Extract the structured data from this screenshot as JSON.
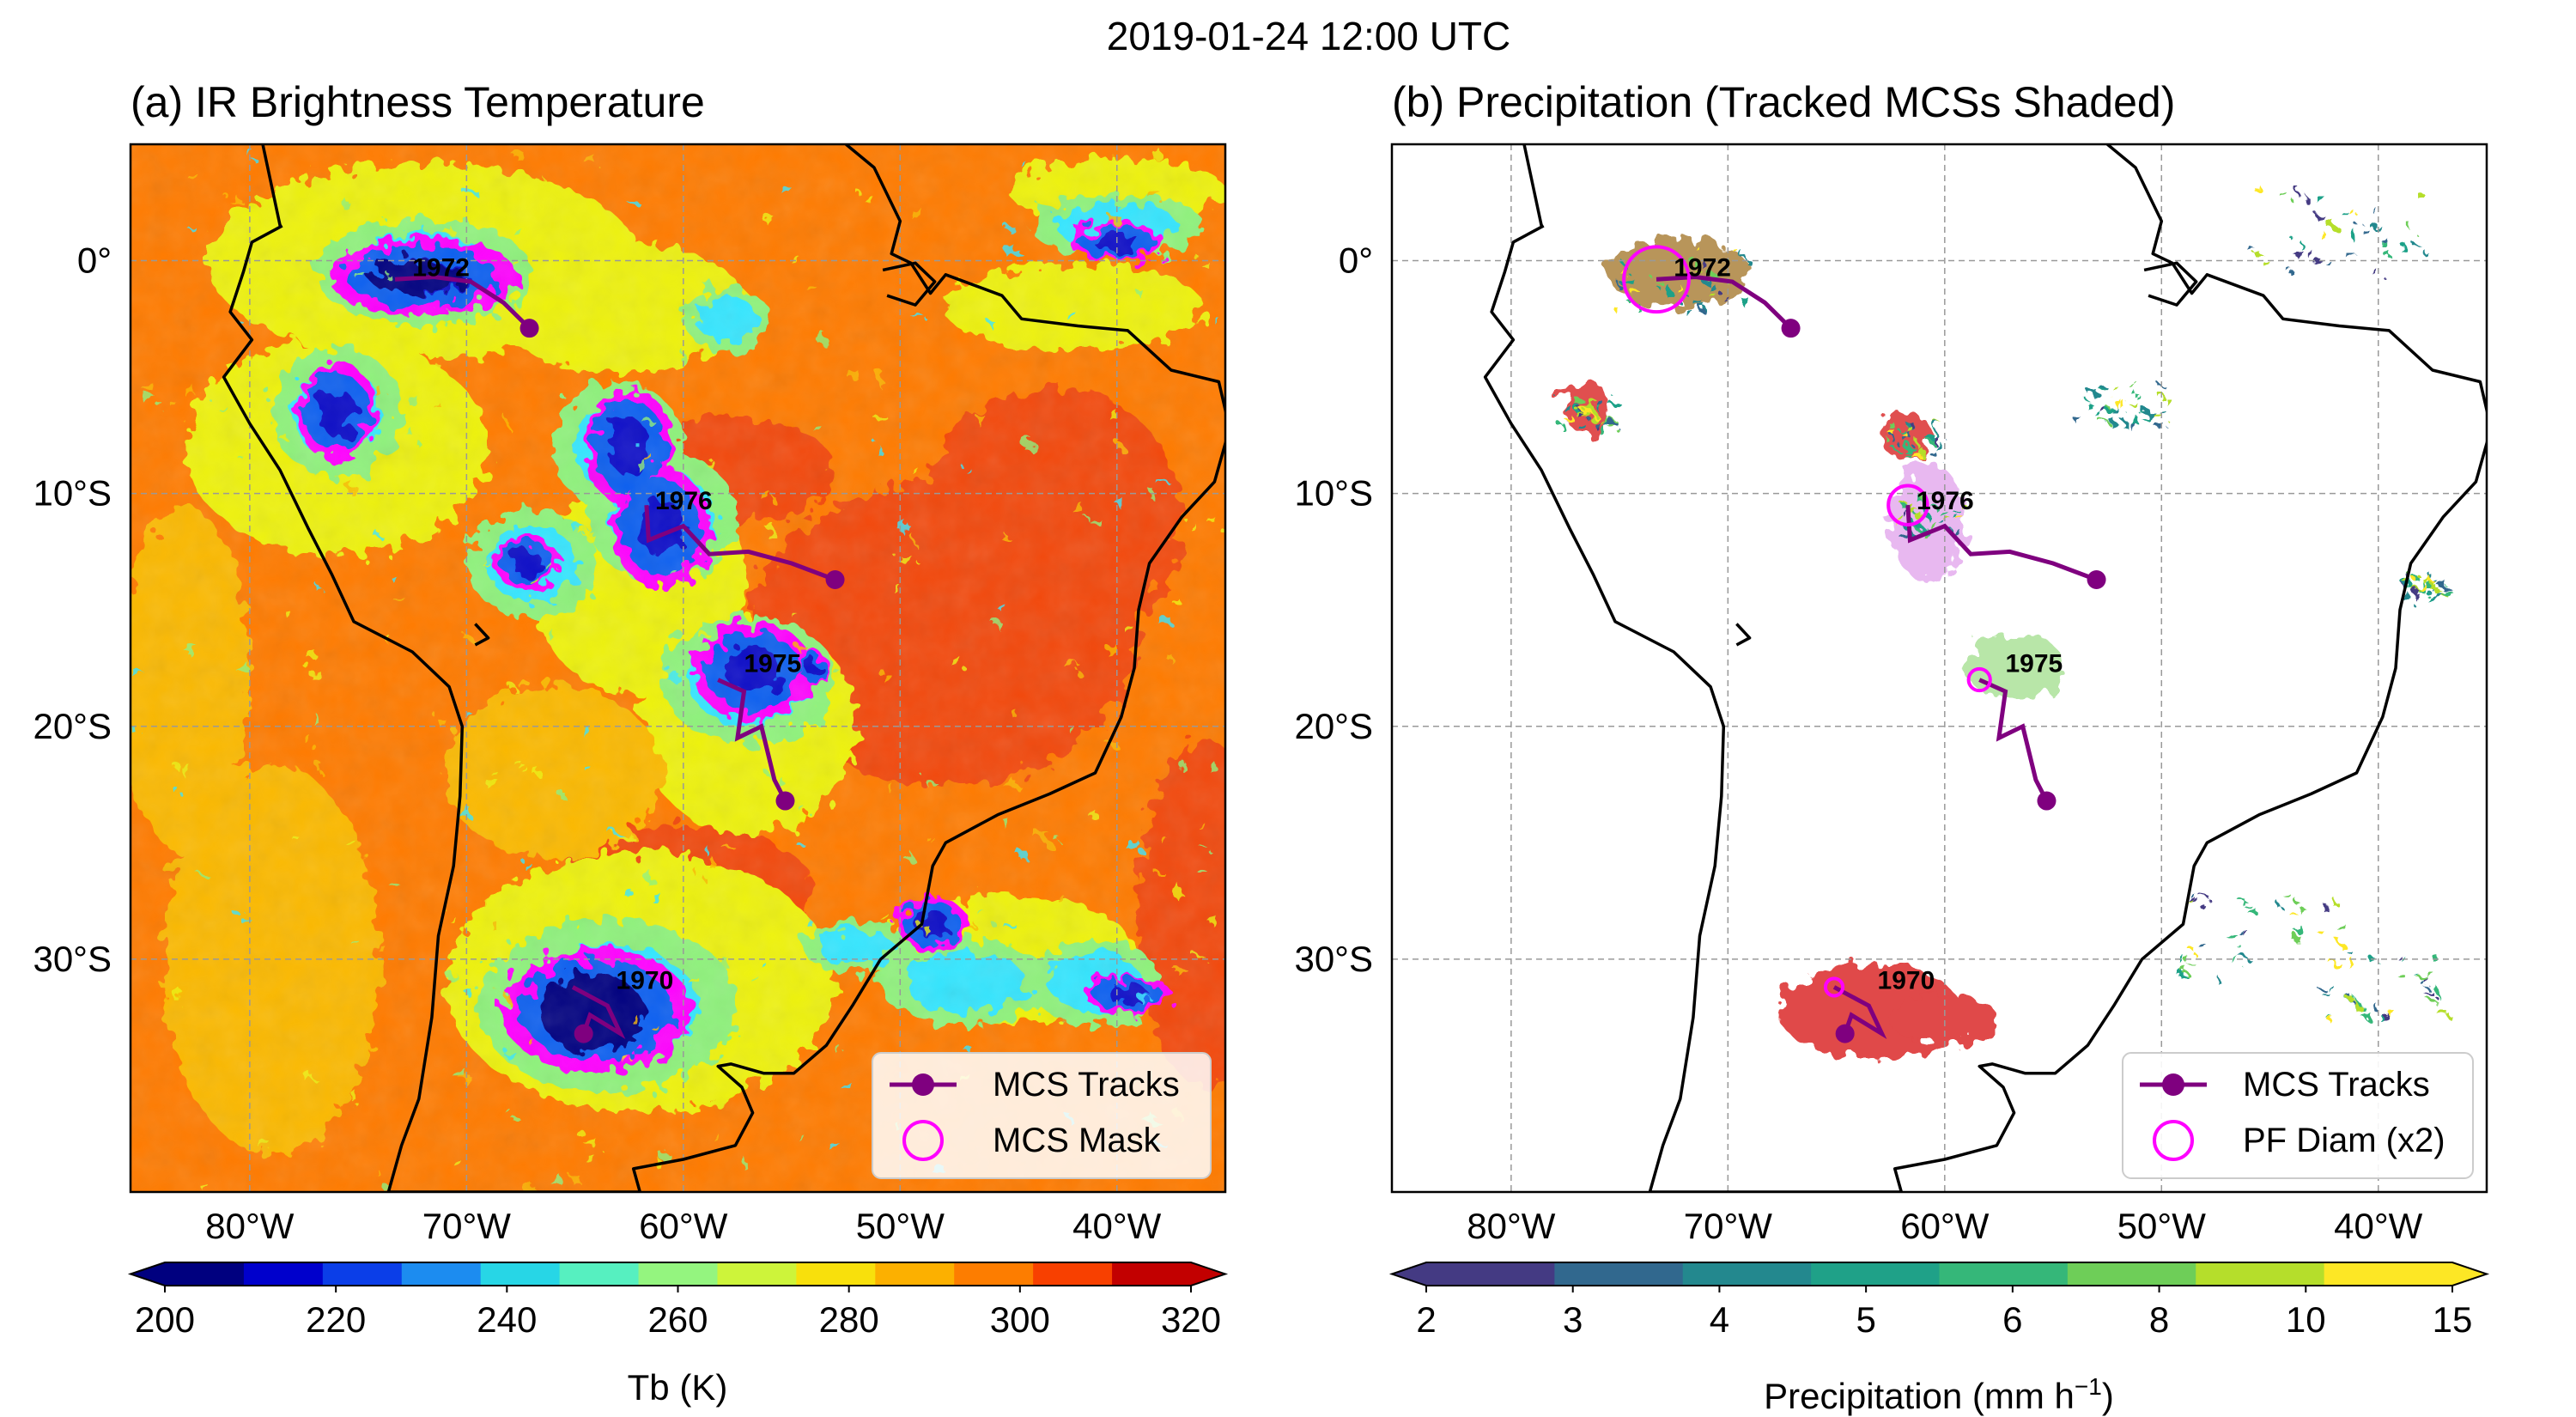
{
  "figure": {
    "suptitle": "2019-01-24 12:00 UTC"
  },
  "panels": {
    "a": {
      "title": "(a) IR Brightness Temperature",
      "legend": {
        "tracks": "MCS Tracks",
        "marker": "MCS Mask"
      },
      "colorbar": {
        "label": "Tb (K)",
        "ticks": [
          "200",
          "220",
          "240",
          "260",
          "280",
          "300",
          "320"
        ],
        "colors": [
          "#00007f",
          "#0000cc",
          "#0b3ee8",
          "#1c8cf0",
          "#27d6e6",
          "#56f0c0",
          "#94f57f",
          "#cdf43a",
          "#f8e00c",
          "#fcb000",
          "#fd7d00",
          "#f84000",
          "#c20000"
        ]
      },
      "palette": {
        "background": "#ff7b00",
        "warm": "#f24a0c",
        "midwarm": "#fbb900",
        "yellow": "#eef20a",
        "green": "#8ff27b",
        "cyan": "#35e6ff",
        "blue": "#1060f0",
        "deep": "#0a10c8",
        "navy": "#000080",
        "mask": "#ff00ff"
      }
    },
    "b": {
      "title": "(b) Precipitation (Tracked MCSs Shaded)",
      "legend": {
        "tracks": "MCS Tracks",
        "marker": "PF Diam (x2)"
      },
      "colorbar": {
        "label": "Precipitation (mm h",
        "label_sup": "−1",
        "label_end": ")",
        "ticks": [
          "2",
          "3",
          "4",
          "5",
          "6",
          "8",
          "10",
          "15"
        ],
        "colors": [
          "#443a83",
          "#31688e",
          "#23888e",
          "#1fa188",
          "#35b779",
          "#6ece58",
          "#b5de2b",
          "#fde725"
        ]
      },
      "mcs_shades": {
        "1970": "#e04848",
        "1972": "#b8955a",
        "1975": "#b8e6a8",
        "1976": "#e8b8f0",
        "sw": "#e05050"
      }
    }
  },
  "map": {
    "lon_ticks": [
      -80,
      -70,
      -60,
      -50,
      -40
    ],
    "lat_ticks": [
      0,
      -10,
      -20,
      -30
    ],
    "lon_labels": [
      "80°W",
      "70°W",
      "60°W",
      "50°W",
      "40°W"
    ],
    "lat_labels": [
      "0°",
      "10°S",
      "20°S",
      "30°S"
    ],
    "lon_range": [
      -85.5,
      -35
    ],
    "lat_range": [
      -40,
      5
    ]
  },
  "mcs_tracks": [
    {
      "id": "1972",
      "lon": [
        -73.3,
        -71.5,
        -69.8,
        -68.3,
        -67.1
      ],
      "lat": [
        -0.8,
        -0.7,
        -0.9,
        -1.8,
        -2.9
      ],
      "label_lon": -72.5,
      "label_lat": -0.3,
      "circle_radius_deg": 1.5
    },
    {
      "id": "1976",
      "lon": [
        -61.7,
        -61.6,
        -60.0,
        -58.8,
        -57.0,
        -55.0,
        -53.0
      ],
      "lat": [
        -10.5,
        -12.0,
        -11.4,
        -12.6,
        -12.5,
        -13.0,
        -13.7
      ],
      "label_lon": -61.3,
      "label_lat": -10.3,
      "circle_radius_deg": 0.9
    },
    {
      "id": "1975",
      "lon": [
        -58.4,
        -57.2,
        -57.5,
        -56.4,
        -55.8,
        -55.3
      ],
      "lat": [
        -18.0,
        -18.5,
        -20.5,
        -20.0,
        -22.3,
        -23.2
      ],
      "label_lon": -57.2,
      "label_lat": -17.3,
      "circle_radius_deg": 0.5
    },
    {
      "id": "1970",
      "lon": [
        -65.1,
        -63.5,
        -62.9,
        -64.3,
        -64.6
      ],
      "lat": [
        -31.2,
        -32.0,
        -33.2,
        -32.4,
        -33.2
      ],
      "label_lon": -63.1,
      "label_lat": -30.9,
      "circle_radius_deg": 0.4
    }
  ],
  "track_color": "#7f007f",
  "marker_color": "#ff00ff",
  "coastline": {
    "south_america": [
      [
        -78.5,
        1.5
      ],
      [
        -79.9,
        0.8
      ],
      [
        -80.3,
        -0.5
      ],
      [
        -80.9,
        -2.2
      ],
      [
        -79.9,
        -3.4
      ],
      [
        -81.2,
        -5.0
      ],
      [
        -80.0,
        -7.0
      ],
      [
        -78.6,
        -9.0
      ],
      [
        -77.3,
        -11.5
      ],
      [
        -76.2,
        -13.5
      ],
      [
        -75.2,
        -15.5
      ],
      [
        -72.5,
        -16.8
      ],
      [
        -70.8,
        -18.3
      ],
      [
        -70.2,
        -20.0
      ],
      [
        -70.3,
        -23.0
      ],
      [
        -70.6,
        -26.0
      ],
      [
        -71.3,
        -29.0
      ],
      [
        -71.6,
        -32.5
      ],
      [
        -72.2,
        -36.0
      ],
      [
        -73.0,
        -38.0
      ],
      [
        -73.6,
        -40.0
      ],
      [
        -62.0,
        -40.0
      ],
      [
        -62.3,
        -39.0
      ],
      [
        -60.0,
        -38.6
      ],
      [
        -57.6,
        -38.0
      ],
      [
        -56.8,
        -36.6
      ],
      [
        -57.3,
        -35.5
      ],
      [
        -58.4,
        -34.6
      ],
      [
        -57.8,
        -34.5
      ],
      [
        -56.3,
        -34.9
      ],
      [
        -54.9,
        -34.9
      ],
      [
        -53.4,
        -33.7
      ],
      [
        -52.2,
        -32.0
      ],
      [
        -50.9,
        -30.0
      ],
      [
        -49.0,
        -28.5
      ],
      [
        -48.5,
        -26.0
      ],
      [
        -47.9,
        -25.0
      ],
      [
        -45.5,
        -23.8
      ],
      [
        -43.1,
        -22.9
      ],
      [
        -41.0,
        -22.0
      ],
      [
        -39.8,
        -19.6
      ],
      [
        -39.2,
        -17.5
      ],
      [
        -39.0,
        -15.0
      ],
      [
        -38.5,
        -13.0
      ],
      [
        -37.0,
        -11.0
      ],
      [
        -35.5,
        -9.5
      ],
      [
        -34.8,
        -7.2
      ],
      [
        -35.3,
        -5.2
      ],
      [
        -37.5,
        -4.7
      ],
      [
        -39.5,
        -3.0
      ],
      [
        -41.8,
        -2.8
      ],
      [
        -44.4,
        -2.5
      ],
      [
        -45.3,
        -1.5
      ],
      [
        -47.9,
        -0.6
      ],
      [
        -48.6,
        -1.4
      ],
      [
        -49.5,
        -0.1
      ],
      [
        -50.4,
        0.3
      ],
      [
        -50.0,
        1.7
      ],
      [
        -51.2,
        4.0
      ],
      [
        -52.5,
        5.0
      ]
    ],
    "marajo": [
      [
        -50.8,
        -0.4
      ],
      [
        -49.3,
        -0.1
      ],
      [
        -48.4,
        -0.9
      ],
      [
        -49.3,
        -1.9
      ],
      [
        -50.6,
        -1.5
      ]
    ],
    "north_edge": [
      [
        -79.4,
        5.0
      ],
      [
        -78.6,
        1.5
      ]
    ],
    "lakes": [
      [
        -69.6,
        -15.6
      ],
      [
        -69.0,
        -16.2
      ],
      [
        -69.6,
        -16.5
      ]
    ]
  }
}
